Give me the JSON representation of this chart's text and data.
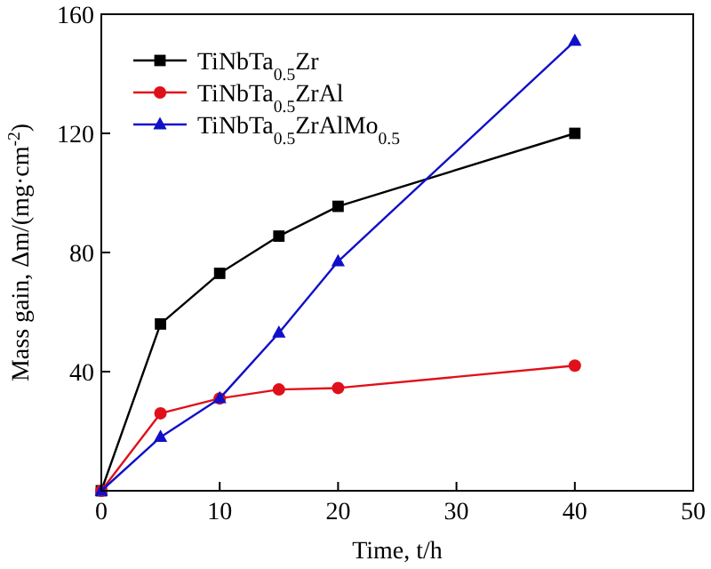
{
  "chart_data": {
    "type": "line",
    "xlabel": "Time, t/h",
    "ylabel": "Mass gain, Δm/(mg·cm$^{-2}$)",
    "x": [
      0,
      5,
      10,
      15,
      20,
      40
    ],
    "series": [
      {
        "name": "TiNbTa$_{0.5}$Zr",
        "color": "#000000",
        "marker": "square",
        "values": [
          0,
          56,
          73,
          85.5,
          95.5,
          120
        ]
      },
      {
        "name": "TiNbTa$_{0.5}$ZrAl",
        "color": "#e0101a",
        "marker": "circle",
        "values": [
          0,
          26,
          31,
          34,
          34.5,
          42
        ]
      },
      {
        "name": "TiNbTa$_{0.5}$ZrAlMo$_{0.5}$",
        "color": "#1010c8",
        "marker": "triangle",
        "values": [
          0,
          18,
          31,
          53,
          77,
          151
        ]
      }
    ],
    "xlim": [
      0,
      50
    ],
    "xticks": [
      0,
      10,
      20,
      30,
      40,
      50
    ],
    "ylim": [
      0,
      160
    ],
    "yticks": [
      40,
      80,
      120,
      160
    ],
    "legend": "top left",
    "grid": false,
    "line_style": "solid"
  }
}
